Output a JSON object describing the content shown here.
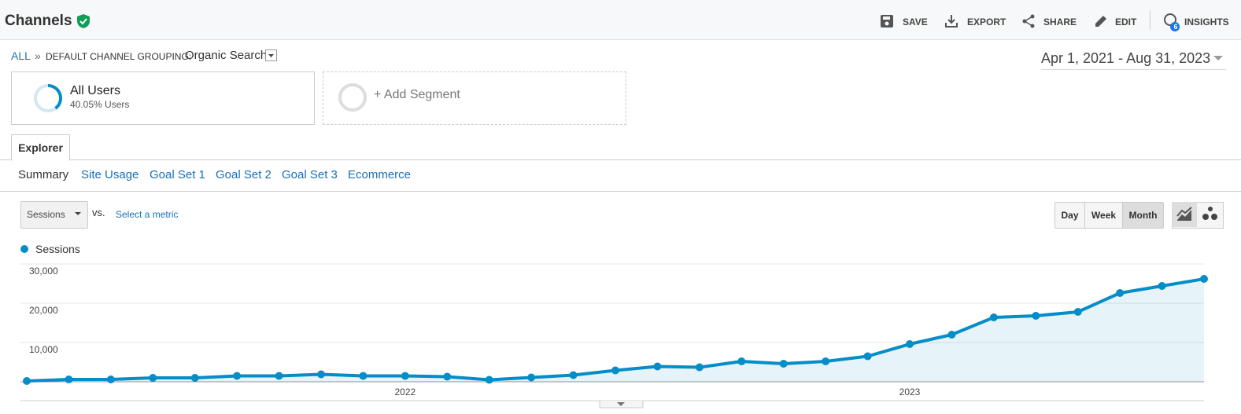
{
  "header": {
    "title": "Channels",
    "actions": [
      "SAVE",
      "EXPORT",
      "SHARE",
      "EDIT",
      "INSIGHTS"
    ],
    "insights_badge": "6"
  },
  "breadcrumb": {
    "root": "ALL",
    "separator": "»",
    "dimension": "DEFAULT CHANNEL GROUPING:",
    "value": "Organic Search"
  },
  "date_range": "Apr 1, 2021 - Aug 31, 2023",
  "segments": {
    "active": {
      "name": "All Users",
      "detail": "40.05% Users"
    },
    "add": "+ Add Segment"
  },
  "tab": "Explorer",
  "subtabs": [
    "Summary",
    "Site Usage",
    "Goal Set 1",
    "Goal Set 2",
    "Goal Set 3",
    "Ecommerce"
  ],
  "metric_picker": {
    "metric": "Sessions",
    "vs": "vs.",
    "compare": "Select a metric"
  },
  "granularity": [
    "Day",
    "Week",
    "Month"
  ],
  "chart_data": {
    "type": "line",
    "categories": [
      null,
      null,
      null,
      null,
      null,
      null,
      null,
      null,
      null,
      "2022",
      null,
      null,
      null,
      null,
      null,
      null,
      null,
      null,
      null,
      null,
      null,
      "2023",
      null,
      null,
      null,
      null,
      null,
      null,
      null
    ],
    "series": [
      {
        "name": "Sessions",
        "color": "#058dc7",
        "values": [
          200,
          600,
          600,
          1000,
          1000,
          1500,
          1500,
          1900,
          1500,
          1500,
          1300,
          500,
          1100,
          1700,
          2900,
          3900,
          3700,
          5200,
          4600,
          5200,
          6500,
          9600,
          12000,
          16400,
          16800,
          17800,
          22600,
          24400,
          26200
        ]
      }
    ],
    "ylim": [
      0,
      30000
    ],
    "yticks": [
      {
        "value": 10000,
        "label": "10,000"
      },
      {
        "value": 20000,
        "label": "20,000"
      },
      {
        "value": 30000,
        "label": "30,000"
      }
    ],
    "grid": true,
    "area": true,
    "markers": true
  }
}
